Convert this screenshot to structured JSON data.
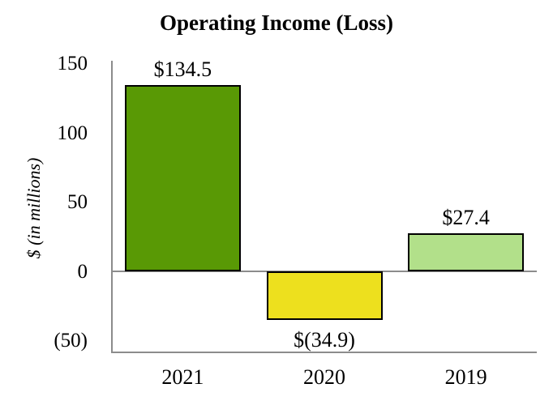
{
  "chart_data": {
    "type": "bar",
    "title": "Operating Income (Loss)",
    "ylabel": "$ (in millions)",
    "xlabel": "",
    "categories": [
      "2021",
      "2020",
      "2019"
    ],
    "values": [
      134.5,
      -34.9,
      27.4
    ],
    "bar_labels": [
      "$134.5",
      "$(34.9)",
      "$27.4"
    ],
    "bar_colors": [
      "#599905",
      "#ede01e",
      "#b2e08a"
    ],
    "bar_border_color": "#000000",
    "axis_line_color": "#8c8c8c",
    "yticks": [
      {
        "value": 150,
        "label": "150"
      },
      {
        "value": 100,
        "label": "100"
      },
      {
        "value": 50,
        "label": "50"
      },
      {
        "value": 0,
        "label": "0"
      },
      {
        "value": -50,
        "label": "(50)"
      }
    ],
    "ylim": [
      -59,
      152
    ],
    "grid": false,
    "legend": "none"
  }
}
